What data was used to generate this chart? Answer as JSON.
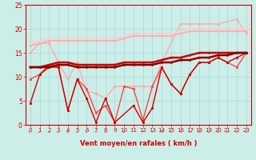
{
  "xlabel": "Vent moyen/en rafales ( km/h )",
  "bg_color": "#cceee8",
  "grid_color": "#aadddd",
  "xlim": [
    -0.5,
    23.5
  ],
  "ylim": [
    0,
    25
  ],
  "yticks": [
    0,
    5,
    10,
    15,
    20,
    25
  ],
  "xticks": [
    0,
    1,
    2,
    3,
    4,
    5,
    6,
    7,
    8,
    9,
    10,
    11,
    12,
    13,
    14,
    15,
    16,
    17,
    18,
    19,
    20,
    21,
    22,
    23
  ],
  "series": [
    {
      "x": [
        0,
        1,
        2,
        3,
        4,
        5,
        6,
        7,
        8,
        9,
        10,
        11,
        12,
        13,
        14,
        16,
        17,
        18,
        20,
        22,
        23
      ],
      "y": [
        15,
        17,
        17,
        13,
        9.5,
        13,
        7,
        6.5,
        5.5,
        8,
        8,
        8,
        8,
        8,
        13,
        21,
        21,
        21,
        21,
        22,
        19
      ],
      "color": "#ffaaaa",
      "lw": 1.0,
      "marker": "o",
      "ms": 2.0
    },
    {
      "x": [
        0,
        1,
        2,
        3,
        4,
        5,
        6,
        7,
        8,
        9,
        10,
        11,
        12,
        13,
        14,
        15,
        16,
        17,
        18,
        19,
        20,
        21,
        22,
        23
      ],
      "y": [
        9.5,
        10.5,
        12.5,
        12,
        3,
        9.5,
        7.5,
        2.5,
        4,
        0.5,
        8,
        7.5,
        1,
        8,
        12,
        8.5,
        6.5,
        10.5,
        13,
        13,
        14,
        13,
        12,
        15
      ],
      "color": "#ff4444",
      "lw": 1.0,
      "marker": "o",
      "ms": 2.0
    },
    {
      "x": [
        0,
        1,
        2,
        3,
        4,
        5,
        6,
        7,
        8,
        9,
        11,
        12,
        13,
        14,
        15,
        16,
        17,
        18,
        19,
        20,
        21,
        22,
        23
      ],
      "y": [
        4.5,
        10.5,
        12,
        12,
        3,
        9.5,
        5.5,
        0.5,
        5.5,
        0.5,
        4,
        0.5,
        3.5,
        12,
        8.5,
        6.5,
        10.5,
        13,
        13,
        14,
        13,
        14,
        15
      ],
      "color": "#cc0000",
      "lw": 1.0,
      "marker": "o",
      "ms": 2.0
    },
    {
      "x": [
        0,
        1,
        2,
        3,
        4,
        5,
        6,
        7,
        8,
        9,
        10,
        11,
        12,
        13,
        14,
        15,
        16,
        17,
        18,
        19,
        20,
        21,
        22,
        23
      ],
      "y": [
        12,
        12,
        12.5,
        13,
        13,
        12.5,
        12.5,
        12.5,
        12.5,
        12.5,
        13,
        13,
        13,
        13,
        13.5,
        14,
        14,
        14.5,
        15,
        15,
        15,
        15,
        15,
        15
      ],
      "color": "#cc0000",
      "lw": 1.8,
      "marker": "o",
      "ms": 1.5
    },
    {
      "x": [
        0,
        1,
        2,
        3,
        4,
        5,
        6,
        7,
        8,
        9,
        10,
        11,
        12,
        13,
        14,
        15,
        16,
        17,
        18,
        19,
        20,
        21,
        22,
        23
      ],
      "y": [
        12,
        12,
        12,
        12.5,
        12.5,
        12,
        12,
        12,
        12,
        12,
        12.5,
        12.5,
        12.5,
        12.5,
        13,
        13,
        13.5,
        13.5,
        14,
        14,
        14.5,
        14.5,
        15,
        15
      ],
      "color": "#880000",
      "lw": 1.8,
      "marker": "o",
      "ms": 1.5
    },
    {
      "x": [
        0,
        1,
        2,
        3,
        4,
        5,
        6,
        7,
        8,
        9,
        10,
        11,
        12,
        13,
        14,
        15,
        16,
        17,
        18,
        19,
        20,
        21,
        22,
        23
      ],
      "y": [
        17,
        17.5,
        18,
        18,
        18,
        18,
        18,
        18,
        18,
        18,
        18.5,
        19,
        19,
        19,
        19,
        19,
        19.5,
        20,
        20,
        20,
        20,
        20,
        20,
        20
      ],
      "color": "#ffcccc",
      "lw": 1.2,
      "marker": "o",
      "ms": 1.5
    },
    {
      "x": [
        0,
        1,
        2,
        3,
        4,
        5,
        6,
        7,
        8,
        9,
        10,
        11,
        12,
        13,
        14,
        15,
        16,
        17,
        18,
        19,
        20,
        21,
        22,
        23
      ],
      "y": [
        16.5,
        17,
        17.5,
        17.5,
        17.5,
        17.5,
        17.5,
        17.5,
        17.5,
        17.5,
        18,
        18.5,
        18.5,
        18.5,
        18.5,
        18.5,
        19,
        19.5,
        19.5,
        19.5,
        19.5,
        19.5,
        19.5,
        19.5
      ],
      "color": "#ffaaaa",
      "lw": 1.2,
      "marker": "o",
      "ms": 1.5
    }
  ],
  "wind_arrows": {
    "x": [
      0,
      1,
      2,
      3,
      4,
      5,
      6,
      7,
      8,
      10,
      13,
      14,
      15,
      16,
      17,
      18,
      19,
      20,
      21,
      22,
      23
    ],
    "dx": [
      1,
      1,
      1,
      1,
      1,
      1,
      1,
      0,
      -1,
      1,
      0,
      -1,
      -1,
      -1,
      -1,
      -1,
      -1,
      -1,
      -1,
      -1,
      -1
    ],
    "dy": [
      0,
      0,
      0,
      0,
      -1,
      -1,
      0,
      -1,
      -1,
      0,
      -1,
      -1,
      -1,
      -1,
      -1,
      -1,
      -1,
      -1,
      -1,
      -1,
      -1
    ]
  }
}
